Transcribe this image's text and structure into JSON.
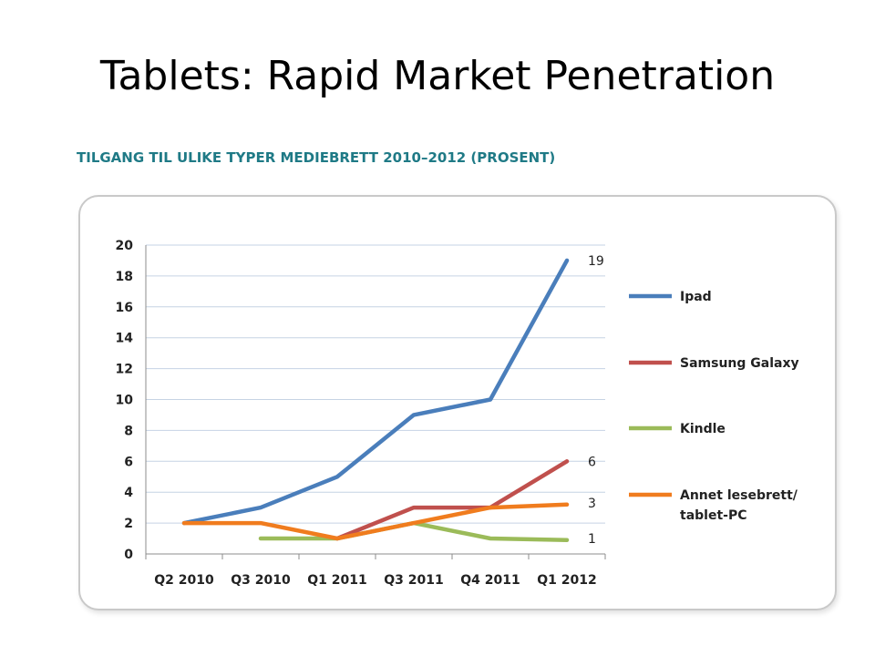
{
  "slide": {
    "title": "Tablets: Rapid Market Penetration"
  },
  "chart_data": {
    "type": "line",
    "title": "TILGANG TIL ULIKE TYPER MEDIEBRETT 2010–2012 (PROSENT)",
    "categories": [
      "Q2 2010",
      "Q3 2010",
      "Q1 2011",
      "Q3 2011",
      "Q4 2011",
      "Q1 2012"
    ],
    "ylim": [
      0,
      20
    ],
    "yticks": [
      0,
      2,
      4,
      6,
      8,
      10,
      12,
      14,
      16,
      18,
      20
    ],
    "grid": true,
    "legend_position": "right",
    "series": [
      {
        "name": "Ipad",
        "color": "#4a7ebb",
        "values": [
          2,
          3,
          5,
          9,
          10,
          19
        ],
        "end_label": "19"
      },
      {
        "name": "Samsung Galaxy",
        "color": "#c0504d",
        "values": [
          null,
          null,
          1,
          3,
          3,
          6
        ],
        "end_label": "6"
      },
      {
        "name": "Kindle",
        "color": "#9bbb59",
        "values": [
          null,
          1,
          1,
          2,
          1,
          0.9
        ],
        "end_label": "1"
      },
      {
        "name": "Annet lesebrett/ tablet-PC",
        "legend_lines": [
          "Annet lesebrett/",
          "tablet-PC"
        ],
        "color": "#f07c1e",
        "values": [
          2,
          2,
          1,
          2,
          3,
          3.2
        ],
        "end_label": "3"
      }
    ]
  }
}
